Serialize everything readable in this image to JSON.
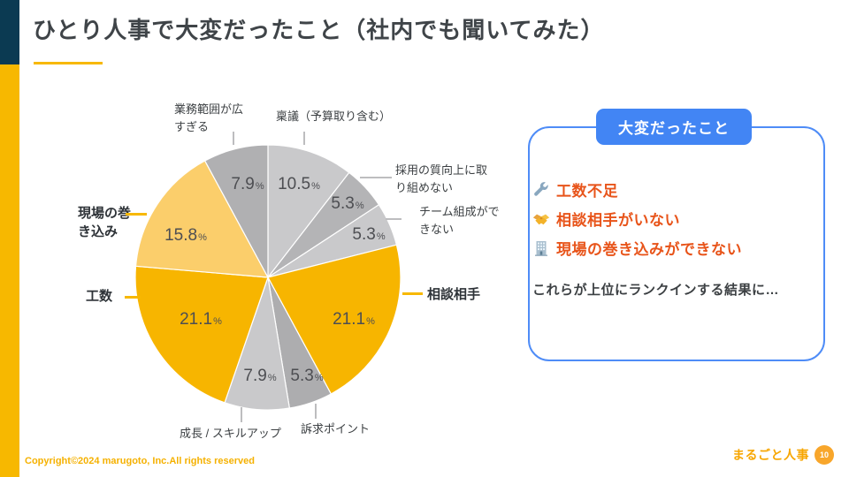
{
  "slide": {
    "title": "ひとり人事で大変だったこと（社内でも聞いてみた）",
    "footer_copyright": "Copyright©2024 marugoto, Inc.All rights reserved",
    "logo_text": "まるごと人事",
    "page_number": "10"
  },
  "colors": {
    "accent_amber": "#F7B800",
    "navy": "#0B3A52",
    "badge_blue": "#4285F4",
    "panel_border_blue": "#4E8CF7",
    "item_orange_red": "#E8541A",
    "logo_amber": "#F7A600",
    "page_badge_orange": "#F8A62B",
    "copyright_amber": "#F5B100"
  },
  "panel": {
    "header": "大変だったこと",
    "items": [
      {
        "icon": "wrench-icon",
        "text": "工数不足"
      },
      {
        "icon": "handshake-icon",
        "text": "相談相手がいない"
      },
      {
        "icon": "building-icon",
        "text": "現場の巻き込みができない"
      }
    ],
    "conclusion": "これらが上位にランクインする結果に…"
  },
  "chart_data": {
    "type": "pie",
    "title": "ひとり人事で大変だったこと（社内でも聞いてみた）",
    "unit": "%",
    "start_angle_deg": 0,
    "direction": "clockwise",
    "legend_position": "none",
    "slices": [
      {
        "label": "稟議（予算取り含む）",
        "value": 10.5,
        "color": "#C9C9CB",
        "emphasis": false
      },
      {
        "label": "採用の質向上に取り組めない",
        "value": 5.3,
        "color": "#B4B4B6",
        "emphasis": false
      },
      {
        "label": "チーム組成ができない",
        "value": 5.3,
        "color": "#C9C9CB",
        "emphasis": false
      },
      {
        "label": "相談相手",
        "value": 21.1,
        "color": "#F7B500",
        "emphasis": true
      },
      {
        "label": "訴求ポイント",
        "value": 5.3,
        "color": "#ADADAF",
        "emphasis": false
      },
      {
        "label": "成長 / スキルアップ",
        "value": 7.9,
        "color": "#C9C9CB",
        "emphasis": false
      },
      {
        "label": "工数",
        "value": 21.1,
        "color": "#F7B500",
        "emphasis": true
      },
      {
        "label": "現場の巻き込み",
        "value": 15.8,
        "color": "#FBCE6B",
        "emphasis": true
      },
      {
        "label": "業務範囲が広すぎる",
        "value": 7.9,
        "color": "#B0B0B2",
        "emphasis": false
      }
    ]
  }
}
